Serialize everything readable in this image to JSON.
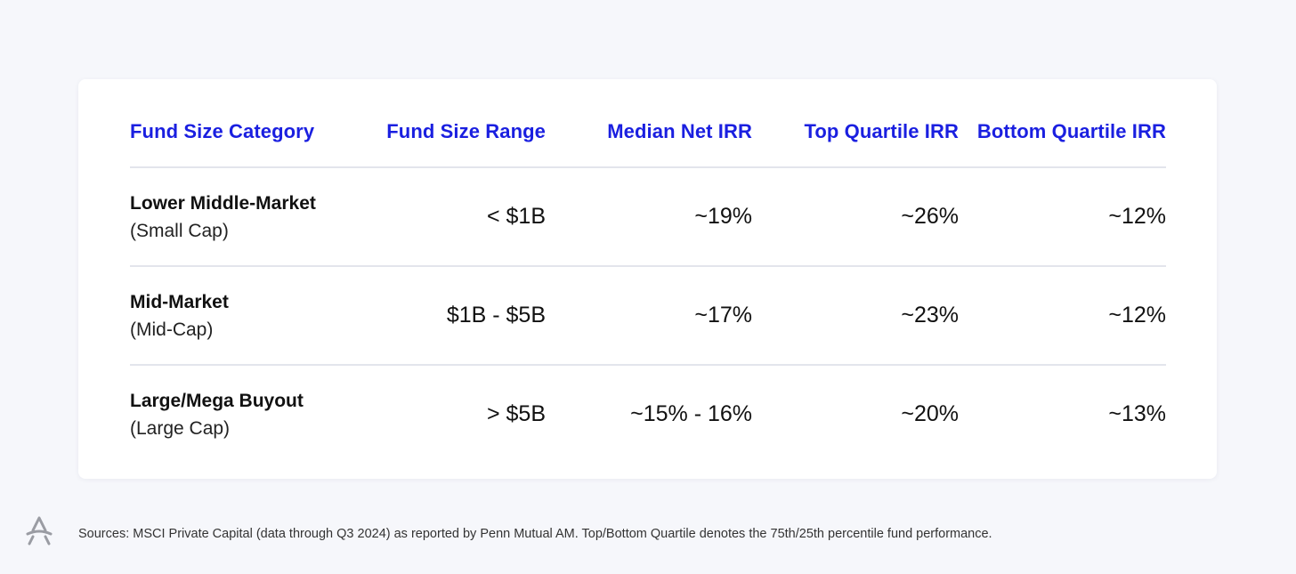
{
  "chart_data": {
    "type": "table",
    "columns": [
      "Fund Size Category",
      "Fund Size Range",
      "Median Net IRR",
      "Top Quartile IRR",
      "Bottom Quartile IRR"
    ],
    "rows": [
      {
        "category": "Lower Middle-Market",
        "subcategory": "(Small Cap)",
        "range": "< $1B",
        "median": "~19%",
        "top": "~26%",
        "bottom": "~12%"
      },
      {
        "category": "Mid-Market",
        "subcategory": "(Mid-Cap)",
        "range": "$1B - $5B",
        "median": "~17%",
        "top": "~23%",
        "bottom": "~12%"
      },
      {
        "category": "Large/Mega Buyout",
        "subcategory": "(Large Cap)",
        "range": "> $5B",
        "median": "~15% - 16%",
        "top": "~20%",
        "bottom": "~13%"
      }
    ]
  },
  "footer": {
    "source": "Sources: MSCI Private Capital (data through Q3 2024) as reported by Penn Mutual AM. Top/Bottom Quartile denotes the 75th/25th percentile fund performance.",
    "logo_icon": "a-logo-icon"
  },
  "colors": {
    "header_text": "#1a1fe0",
    "background": "#f6f7fb",
    "card": "#ffffff",
    "divider": "#e3e5ec"
  }
}
